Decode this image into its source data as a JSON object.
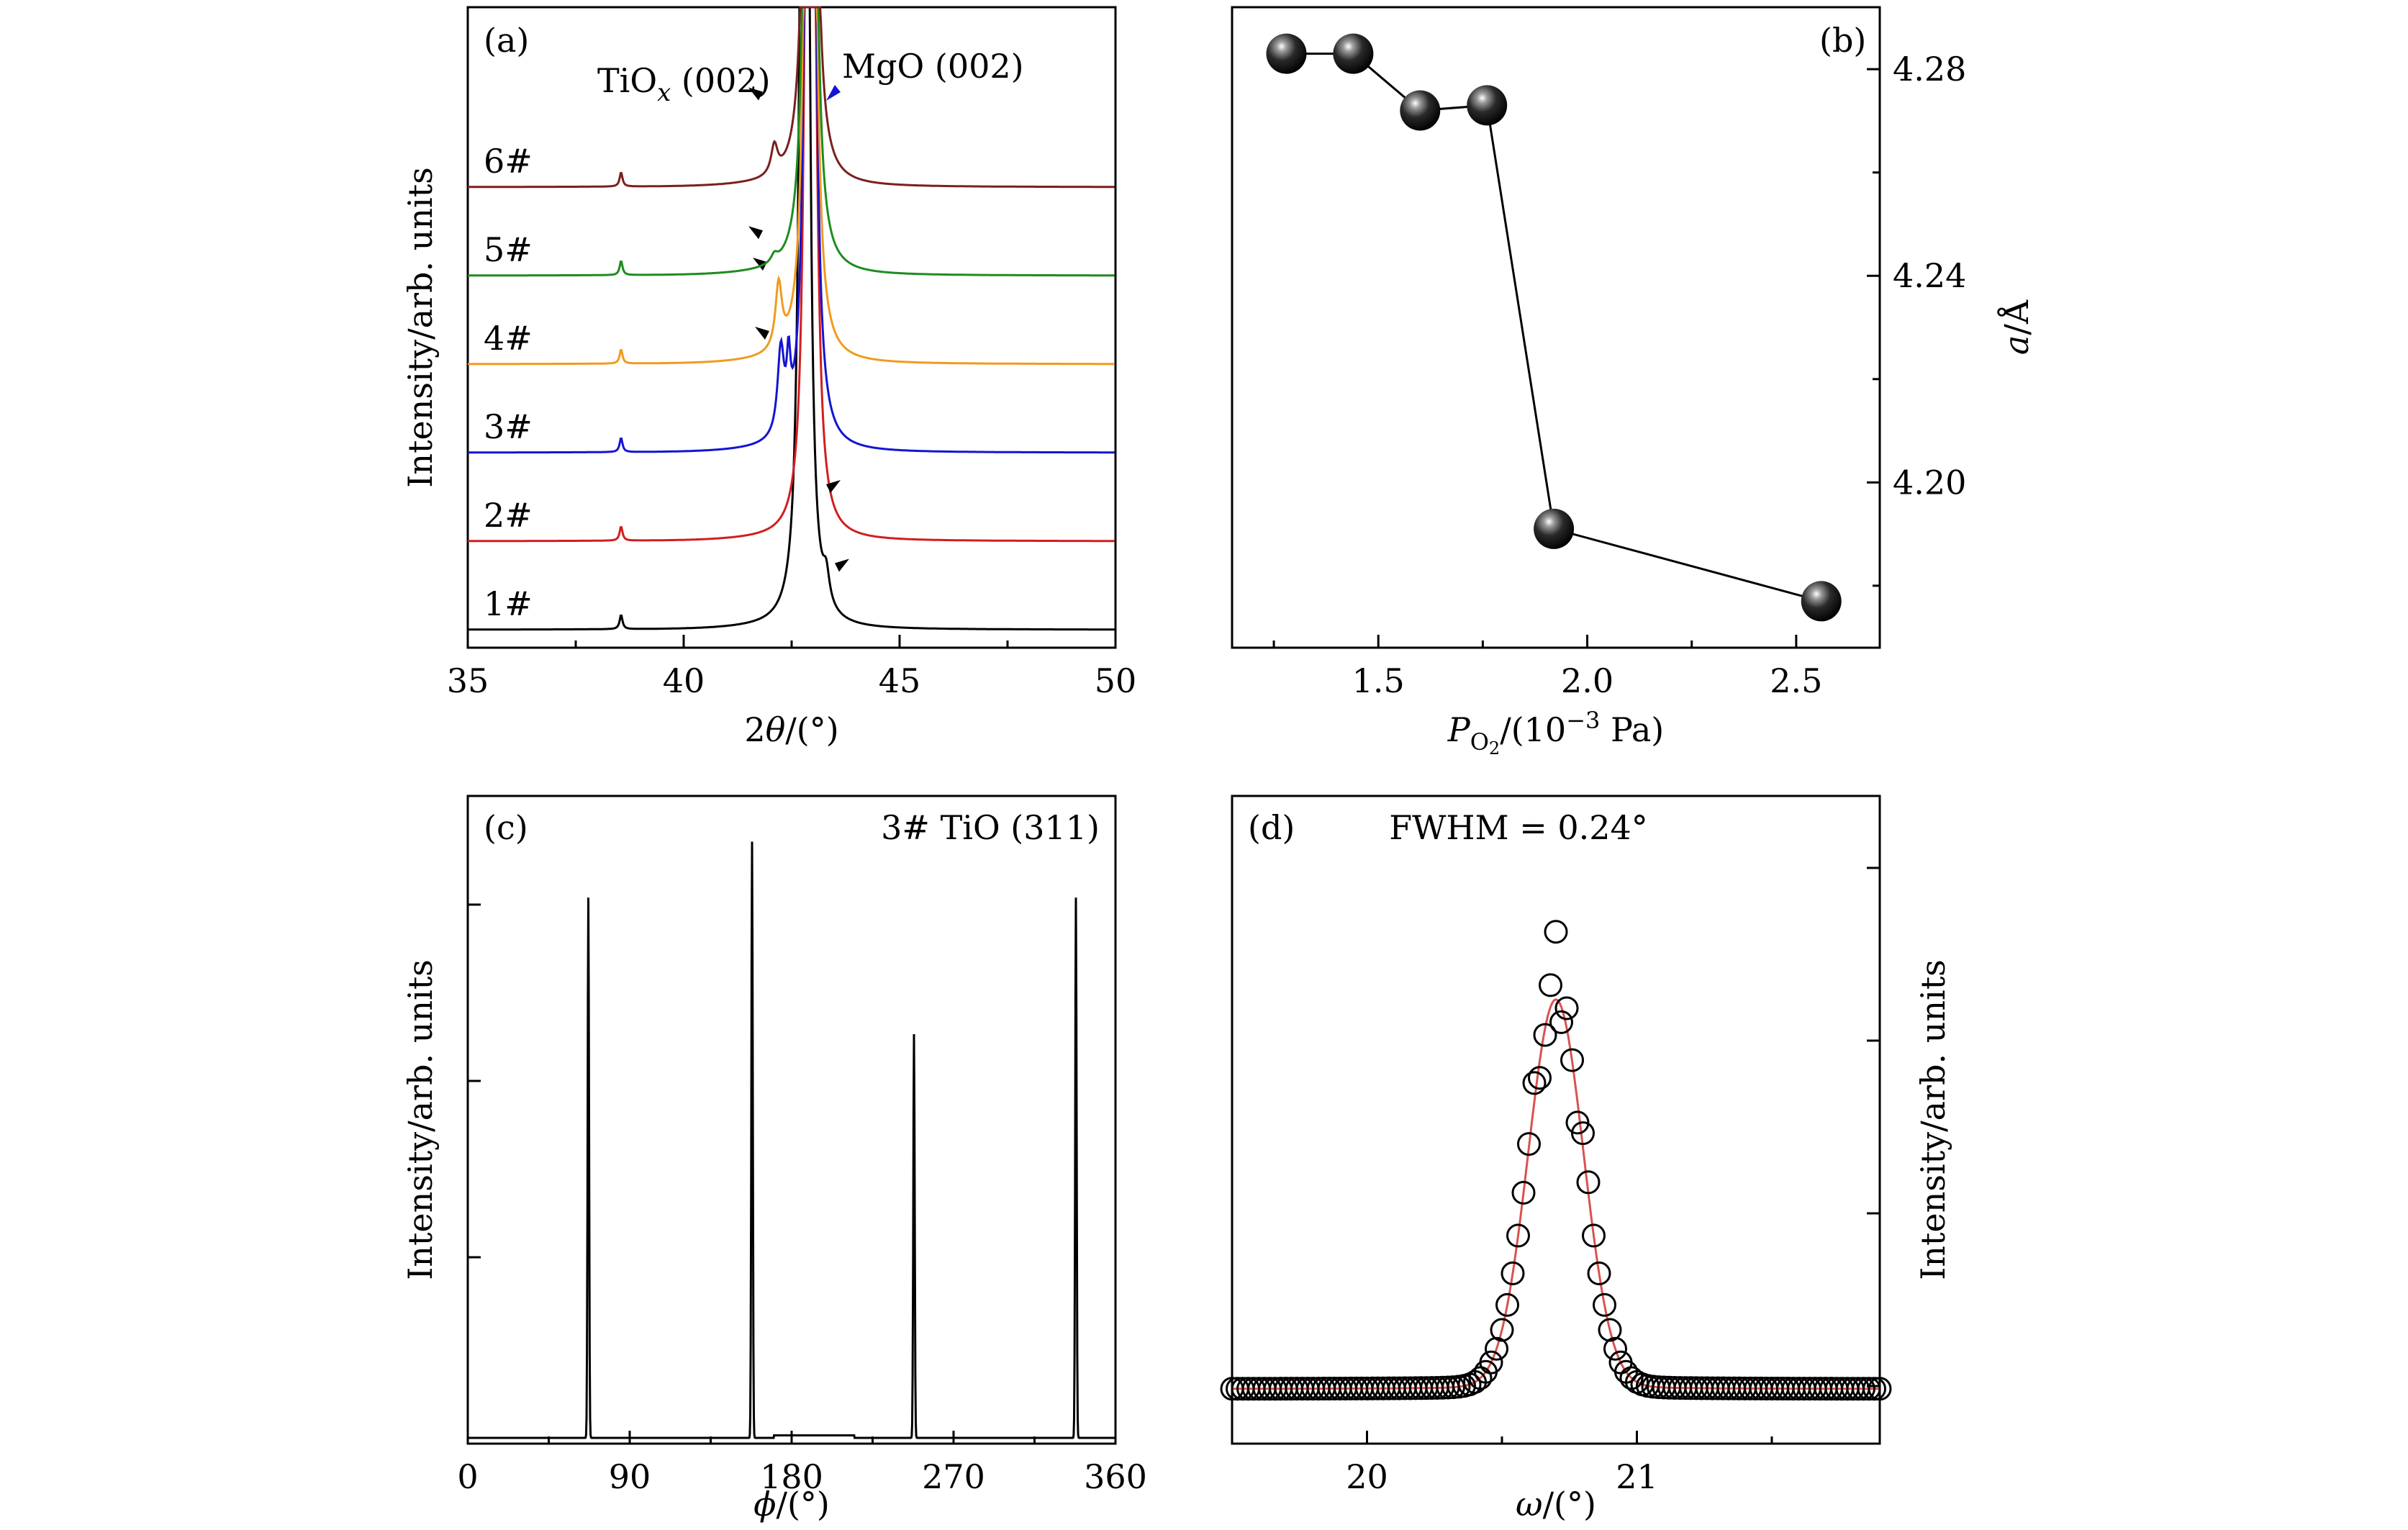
{
  "chart_data": [
    {
      "panel": "(a)",
      "type": "line",
      "xlabel": "2θ/(°)",
      "ylabel": "Intensity/arb. units",
      "xlim": [
        35,
        50
      ],
      "xticks": [
        "35",
        "40",
        "45",
        "50"
      ],
      "annotations": [
        "TiOx (002)",
        "MgO (002)"
      ],
      "colors": {
        "6#": "#7b1f1f",
        "5#": "#1e8c1e",
        "4#": "#f29a1f",
        "3#": "#1414d2",
        "2#": "#d21e1e",
        "1#": "#000000"
      },
      "series": [
        {
          "name": "6#",
          "offset": 5,
          "tio_peak": 42.1,
          "tio_height": 0.45,
          "mgo_peak": 42.93
        },
        {
          "name": "5#",
          "offset": 4,
          "tio_peak": 42.1,
          "tio_height": 0.12,
          "mgo_peak": 42.93
        },
        {
          "name": "4#",
          "offset": 3,
          "tio_peak": 42.2,
          "tio_height": 1.0,
          "mgo_peak": 42.93
        },
        {
          "name": "3#",
          "offset": 2,
          "tio_peak": 42.25,
          "tio_height": 1.3,
          "mgo_peak": 42.93
        },
        {
          "name": "2#",
          "offset": 1,
          "tio_peak": 43.1,
          "tio_height": 0.3,
          "mgo_peak": 42.93
        },
        {
          "name": "1#",
          "offset": 0,
          "tio_peak": 43.3,
          "tio_height": 0.45,
          "mgo_peak": 42.8
        }
      ]
    },
    {
      "panel": "(b)",
      "type": "scatter",
      "xlabel": "P_O2/(10^-3 Pa)",
      "ylabel": "a/Å",
      "xlim": [
        1.15,
        2.7
      ],
      "ylim": [
        4.168,
        4.292
      ],
      "xticks": [
        "1.5",
        "2.0",
        "2.5"
      ],
      "yticks": [
        "4.20",
        "4.24",
        "4.28"
      ],
      "x": [
        1.28,
        1.44,
        1.6,
        1.76,
        1.92,
        2.56
      ],
      "y": [
        4.283,
        4.283,
        4.272,
        4.273,
        4.191,
        4.177
      ]
    },
    {
      "panel": "(c)",
      "type": "line",
      "annotation": "3# TiO (311)",
      "xlabel": "ϕ/(°)",
      "ylabel": "Intensity/arb. units",
      "xlim": [
        0,
        360
      ],
      "xticks": [
        "0",
        "90",
        "180",
        "270",
        "360"
      ],
      "peaks_x": [
        67,
        158,
        248,
        338
      ],
      "peaks_height": [
        0.87,
        0.96,
        0.65,
        0.87
      ]
    },
    {
      "panel": "(d)",
      "type": "scatter",
      "annotation": "FWHM = 0.24°",
      "xlabel": "ω/(°)",
      "ylabel": "Intensity/arb. units",
      "xlim": [
        19.5,
        21.9
      ],
      "xticks": [
        "20",
        "21"
      ],
      "peak_center": 20.7,
      "fwhm": 0.24,
      "fit_color": "#d9534f"
    }
  ]
}
